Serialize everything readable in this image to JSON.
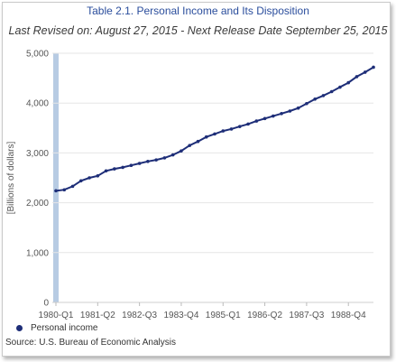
{
  "title": "Table 2.1. Personal Income and Its Disposition",
  "subtitle": "Last Revised on: August 27, 2015 - Next Release Date September 25, 2015",
  "source": "Source: U.S. Bureau of Economic  Analysis",
  "colors": {
    "line": "#1e2e78",
    "grid": "#e6e6e6",
    "highlight": "#b7cbe3",
    "title": "#2a4d9c"
  },
  "chart_data": {
    "type": "line",
    "ylabel": "[Billions of dollars]",
    "xlabel": "",
    "ylim": [
      0,
      5000
    ],
    "yticks": [
      0,
      1000,
      2000,
      3000,
      4000,
      5000
    ],
    "ytick_labels": [
      "0",
      "1,000",
      "2,000",
      "3,000",
      "4,000",
      "5,000"
    ],
    "x_tick_labels": [
      "1980-Q1",
      "1981-Q2",
      "1982-Q3",
      "1983-Q4",
      "1985-Q1",
      "1986-Q2",
      "1987-Q3",
      "1988-Q4"
    ],
    "x_tick_step": 5,
    "highlight_quarter": "1980-Q1",
    "legend_position": "bottom-left",
    "grid": "horizontal",
    "categories": [
      "1980-Q1",
      "1980-Q2",
      "1980-Q3",
      "1980-Q4",
      "1981-Q1",
      "1981-Q2",
      "1981-Q3",
      "1981-Q4",
      "1982-Q1",
      "1982-Q2",
      "1982-Q3",
      "1982-Q4",
      "1983-Q1",
      "1983-Q2",
      "1983-Q3",
      "1983-Q4",
      "1984-Q1",
      "1984-Q2",
      "1984-Q3",
      "1984-Q4",
      "1985-Q1",
      "1985-Q2",
      "1985-Q3",
      "1985-Q4",
      "1986-Q1",
      "1986-Q2",
      "1986-Q3",
      "1986-Q4",
      "1987-Q1",
      "1987-Q2",
      "1987-Q3",
      "1987-Q4",
      "1988-Q1",
      "1988-Q2",
      "1988-Q3",
      "1988-Q4",
      "1989-Q1",
      "1989-Q2",
      "1989-Q3"
    ],
    "series": [
      {
        "name": "Personal income",
        "values": [
          2240,
          2260,
          2330,
          2440,
          2500,
          2540,
          2640,
          2680,
          2710,
          2750,
          2790,
          2830,
          2860,
          2900,
          2960,
          3040,
          3150,
          3230,
          3320,
          3380,
          3440,
          3480,
          3530,
          3580,
          3640,
          3690,
          3740,
          3790,
          3840,
          3900,
          3990,
          4080,
          4150,
          4230,
          4320,
          4410,
          4530,
          4620,
          4720
        ]
      }
    ]
  }
}
